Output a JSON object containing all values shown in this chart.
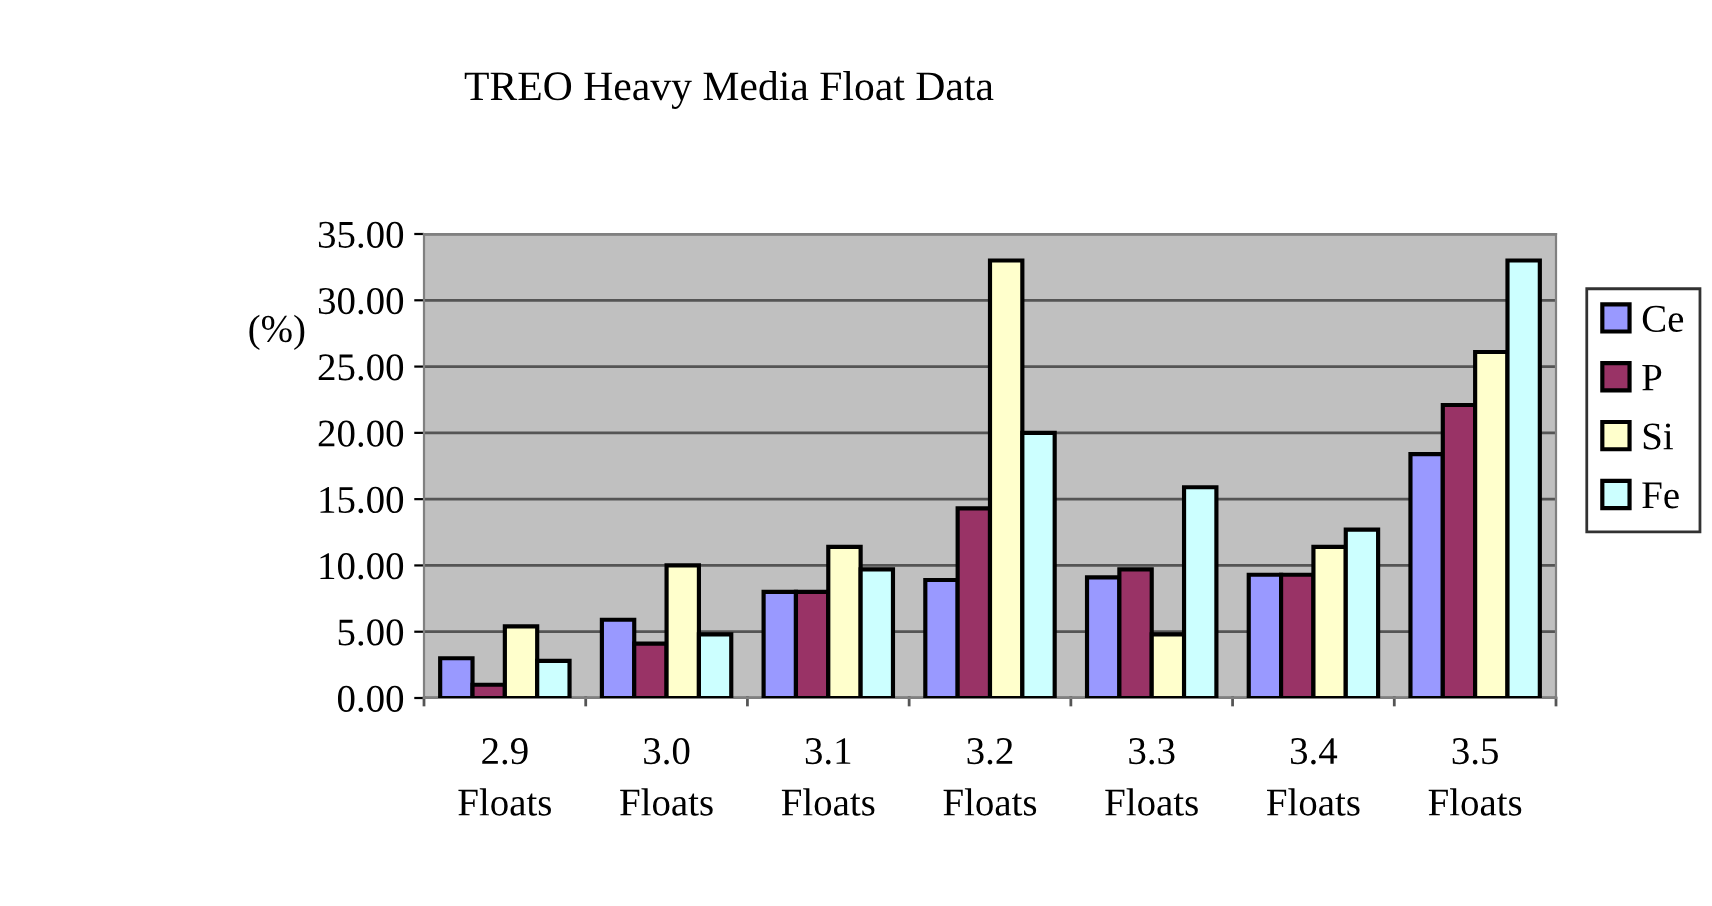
{
  "chart_data": {
    "type": "bar",
    "title": "TREO Heavy Media Float Data",
    "ylabel": "(%)",
    "categories": [
      "2.9\nFloats",
      "3.0\nFloats",
      "3.1\nFloats",
      "3.2\nFloats",
      "3.3\nFloats",
      "3.4\nFloats",
      "3.5\nFloats"
    ],
    "series": [
      {
        "name": "Ce",
        "color": "#9999ff",
        "values": [
          3.0,
          5.9,
          8.0,
          8.9,
          9.1,
          9.3,
          18.4
        ]
      },
      {
        "name": "P",
        "color": "#993366",
        "values": [
          1.0,
          4.1,
          8.0,
          14.3,
          9.7,
          9.3,
          22.1
        ]
      },
      {
        "name": "Si",
        "color": "#ffffcc",
        "values": [
          5.4,
          10.0,
          11.4,
          33.0,
          4.8,
          11.4,
          26.1
        ]
      },
      {
        "name": "Fe",
        "color": "#ccffff",
        "values": [
          2.8,
          4.8,
          9.7,
          20.0,
          15.9,
          12.7,
          33.0
        ]
      }
    ],
    "ylim": [
      0,
      35
    ],
    "yticks": [
      {
        "value": 0,
        "label": "0.00"
      },
      {
        "value": 5,
        "label": "5.00"
      },
      {
        "value": 10,
        "label": "10.00"
      },
      {
        "value": 15,
        "label": "15.00"
      },
      {
        "value": 20,
        "label": "20.00"
      },
      {
        "value": 25,
        "label": "25.00"
      },
      {
        "value": 30,
        "label": "30.00"
      },
      {
        "value": 35,
        "label": "35.00"
      }
    ],
    "grid": "y",
    "legend": "right"
  }
}
